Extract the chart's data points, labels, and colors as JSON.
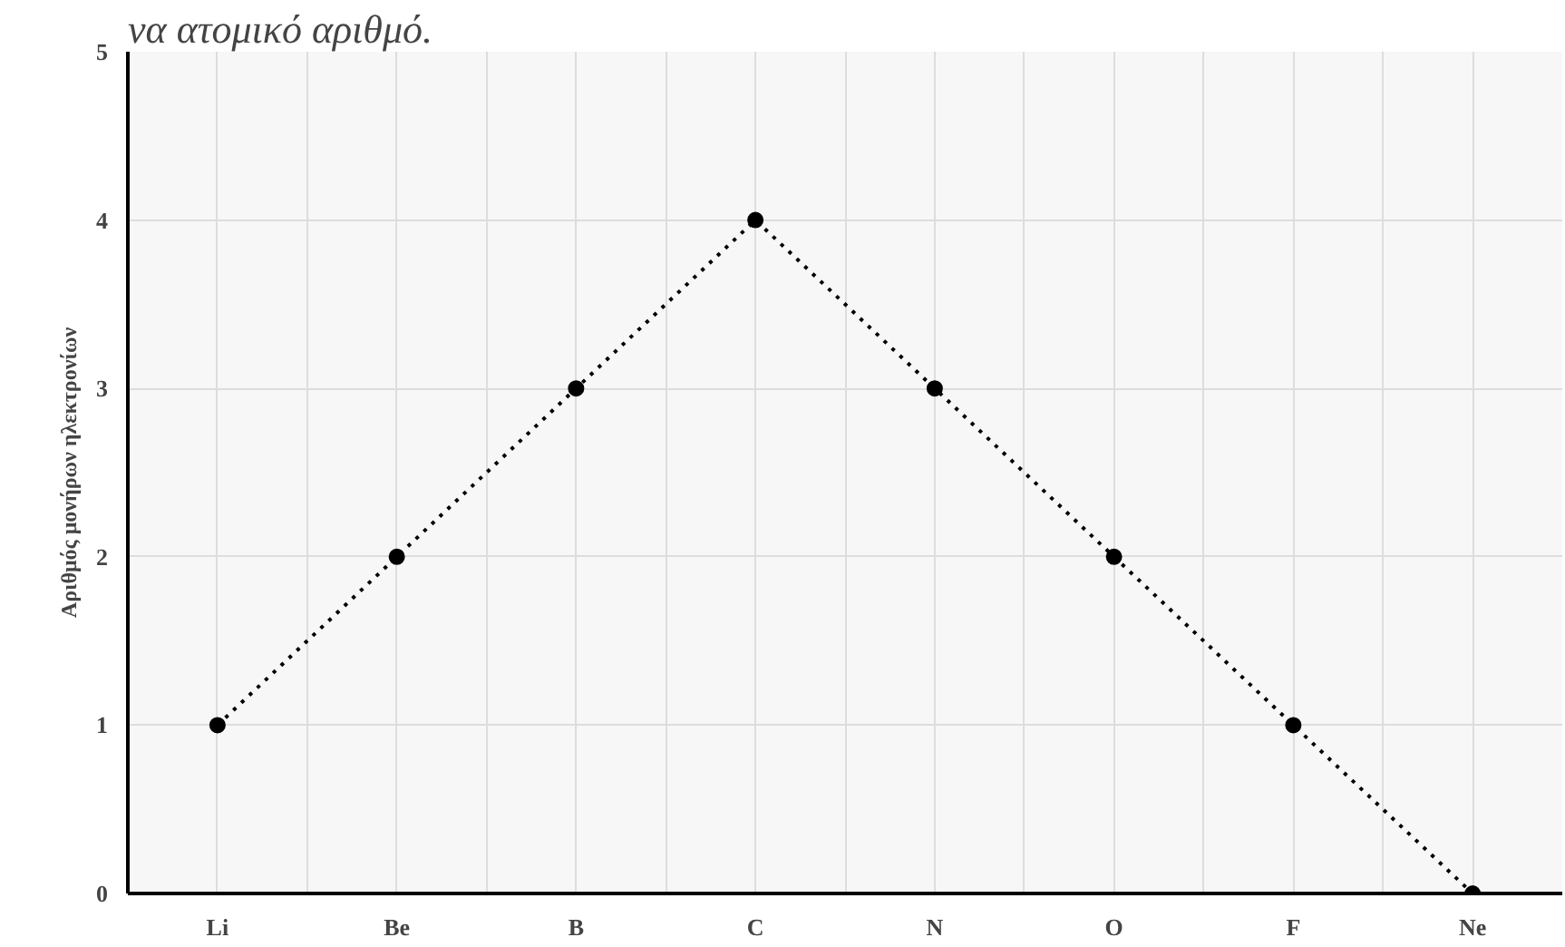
{
  "chart_data": {
    "type": "line",
    "ylabel": "Αριθμός μονήρων ηλεκτρονίων",
    "annotations": [
      "να ατομικό αριθμό."
    ],
    "categories": [
      "Li",
      "Be",
      "B",
      "C",
      "N",
      "O",
      "F",
      "Ne"
    ],
    "series": [
      {
        "color": "#000000",
        "values": [
          1,
          2,
          3,
          4,
          3,
          2,
          1,
          0
        ]
      }
    ],
    "ylim": [
      0,
      5
    ],
    "yticks": [
      0,
      1,
      2,
      3,
      4,
      5
    ],
    "grid": true,
    "marker": "circle",
    "line_style": "dotted"
  }
}
